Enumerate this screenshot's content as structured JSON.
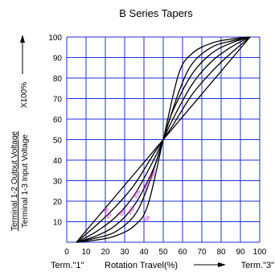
{
  "chart_data": {
    "type": "line",
    "title": "B Series Tapers",
    "ylabel_numerator": "Terminal 1-2 Output Voltage",
    "ylabel_denominator": "Terminal 1-3 Input Voltage",
    "ylabel_scale": "X100%",
    "xlabel": "Rotation Travel(%)",
    "x_start_label": "Term.\"1\"",
    "x_end_label": "Term.\"3\"",
    "xlim": [
      0,
      100
    ],
    "ylim": [
      0,
      100
    ],
    "xticks": [
      "0",
      "10",
      "20",
      "30",
      "40",
      "50",
      "60",
      "70",
      "80",
      "90",
      "100"
    ],
    "yticks": [
      "10",
      "20",
      "30",
      "40",
      "50",
      "60",
      "70",
      "80",
      "90",
      "100"
    ],
    "grid": true,
    "colors": {
      "grid": "#1f2fd6",
      "curve": "#000000",
      "curve_label": "#d020d0"
    },
    "series": [
      {
        "label": "",
        "points": [
          [
            5,
            0
          ],
          [
            50,
            50
          ],
          [
            95,
            100
          ]
        ]
      },
      {
        "label": "",
        "points": [
          [
            5,
            0
          ],
          [
            15,
            8
          ],
          [
            25,
            17
          ],
          [
            35,
            28
          ],
          [
            45,
            43
          ],
          [
            50,
            50
          ],
          [
            55,
            57
          ],
          [
            65,
            72
          ],
          [
            75,
            83
          ],
          [
            85,
            92
          ],
          [
            95,
            100
          ]
        ]
      },
      {
        "label": "",
        "points": [
          [
            5,
            0
          ],
          [
            15,
            5
          ],
          [
            25,
            12
          ],
          [
            35,
            23
          ],
          [
            45,
            40
          ],
          [
            50,
            50
          ],
          [
            55,
            60
          ],
          [
            65,
            77
          ],
          [
            75,
            88
          ],
          [
            85,
            95
          ],
          [
            95,
            100
          ]
        ]
      },
      {
        "label": "",
        "points": [
          [
            5,
            0
          ],
          [
            15,
            3
          ],
          [
            25,
            8
          ],
          [
            35,
            18
          ],
          [
            45,
            36
          ],
          [
            50,
            50
          ],
          [
            55,
            64
          ],
          [
            65,
            82
          ],
          [
            75,
            92
          ],
          [
            85,
            97
          ],
          [
            95,
            100
          ]
        ]
      },
      {
        "label": "",
        "points": [
          [
            5,
            0
          ],
          [
            15,
            2
          ],
          [
            25,
            5
          ],
          [
            35,
            13
          ],
          [
            42,
            27
          ],
          [
            50,
            50
          ],
          [
            58,
            73
          ],
          [
            65,
            87
          ],
          [
            75,
            95
          ],
          [
            85,
            98
          ],
          [
            95,
            100
          ]
        ]
      },
      {
        "label": "",
        "points": [
          [
            5,
            0
          ],
          [
            15,
            1
          ],
          [
            25,
            3
          ],
          [
            35,
            8
          ],
          [
            42,
            18
          ],
          [
            50,
            50
          ],
          [
            58,
            82
          ],
          [
            65,
            92
          ],
          [
            75,
            97
          ],
          [
            85,
            99
          ],
          [
            95,
            100
          ]
        ]
      }
    ],
    "curve_labels": [
      {
        "text": "2B",
        "x": 21,
        "y": 15
      },
      {
        "text": "4B",
        "x": 22.5,
        "y": 12.5
      },
      {
        "text": "8B",
        "x": 29.5,
        "y": 14
      },
      {
        "text": "16B",
        "x": 34,
        "y": 15
      },
      {
        "text": "30B",
        "x": 37,
        "y": 23
      },
      {
        "text": "50B",
        "x": 42,
        "y": 27
      },
      {
        "text": "100B",
        "x": 45,
        "y": 32
      },
      {
        "text": "0B",
        "x": 42.5,
        "y": 11
      }
    ]
  }
}
